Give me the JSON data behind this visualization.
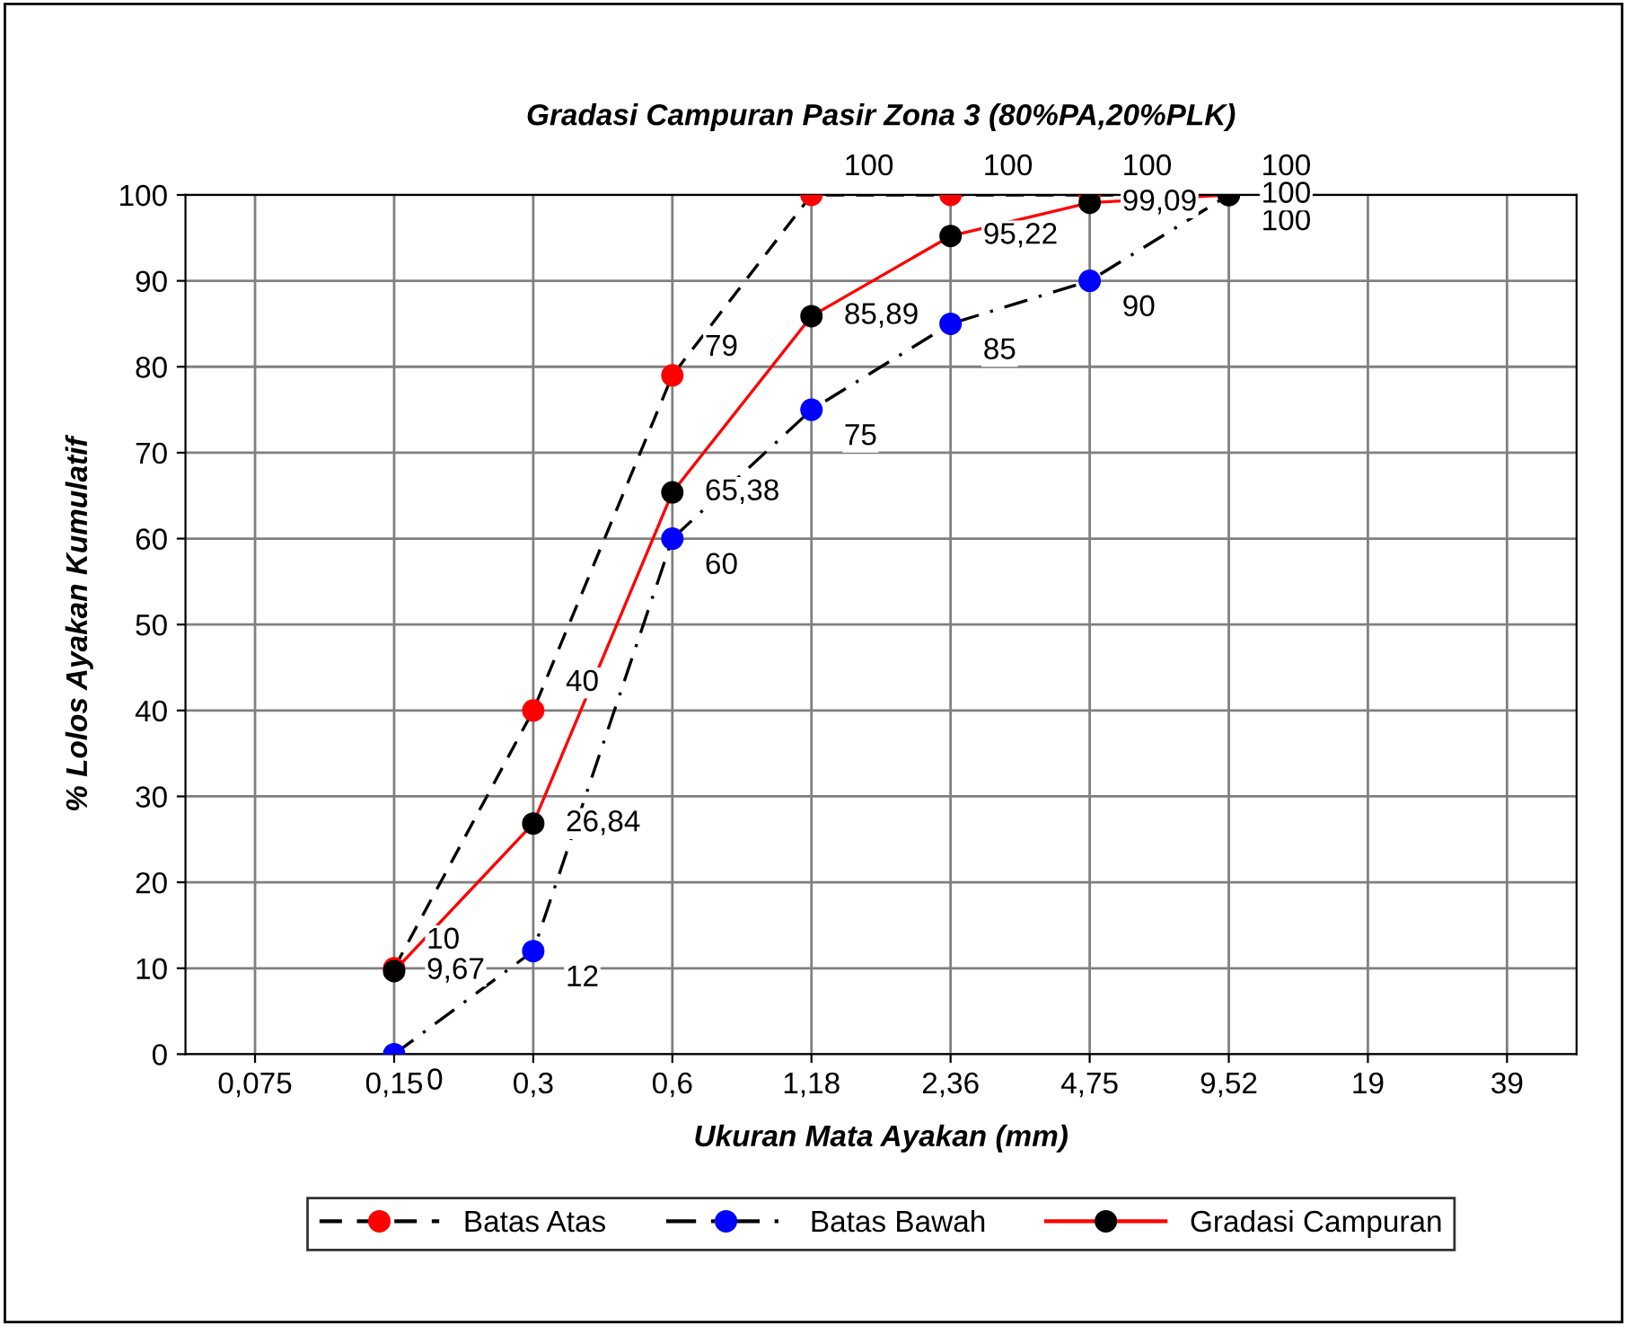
{
  "chart_data": {
    "type": "line",
    "title": "Gradasi Campuran Pasir Zona 3 (80%PA,20%PLK)",
    "xlabel": "Ukuran Mata Ayakan (mm)",
    "ylabel": "% Lolos Ayakan Kumulatif",
    "categories": [
      "0,075",
      "0,15",
      "0,3",
      "0,6",
      "1,18",
      "2,36",
      "4,75",
      "9,52",
      "19",
      "39"
    ],
    "ylim": [
      0,
      100
    ],
    "yticks": [
      0,
      10,
      20,
      30,
      40,
      50,
      60,
      70,
      80,
      90,
      100
    ],
    "grid": true,
    "legend": "bottom",
    "marker": "circle",
    "series": [
      {
        "name": "Batas Atas",
        "color": "#000000",
        "colors": [
          null,
          "#ff0000",
          "#ff0000",
          "#ff0000",
          "#ff0000",
          "#ff0000",
          "#ff0000",
          "#000000",
          null,
          null
        ],
        "line_style": "dashed",
        "values": [
          null,
          10,
          40,
          79,
          100,
          100,
          100,
          100,
          null,
          null
        ],
        "value_labels": [
          null,
          "10",
          "40",
          "79",
          "100",
          "100",
          "100",
          "100",
          null,
          null
        ]
      },
      {
        "name": "Batas Bawah",
        "color": "#000000",
        "colors": [
          null,
          "#0000ff",
          "#0000ff",
          "#0000ff",
          "#0000ff",
          "#0000ff",
          "#0000ff",
          "#000000",
          null,
          null
        ],
        "line_style": "dashdot",
        "values": [
          null,
          0,
          12,
          60,
          75,
          85,
          90,
          100,
          null,
          null
        ],
        "value_labels": [
          null,
          "0",
          "12",
          "60",
          "75",
          "85",
          "90",
          "100",
          null,
          null
        ]
      },
      {
        "name": "Gradasi Campuran",
        "color": "#ff0000",
        "colors": [
          null,
          "#000000",
          "#000000",
          "#000000",
          "#000000",
          "#000000",
          "#000000",
          "#000000",
          null,
          null
        ],
        "line_style": "solid",
        "values": [
          null,
          9.67,
          26.84,
          65.38,
          85.89,
          95.22,
          99.09,
          100,
          null,
          null
        ],
        "value_labels": [
          null,
          "9,67",
          "26,84",
          "65,38",
          "85,89",
          "95,22",
          "99,09",
          "100",
          null,
          null
        ]
      }
    ]
  }
}
